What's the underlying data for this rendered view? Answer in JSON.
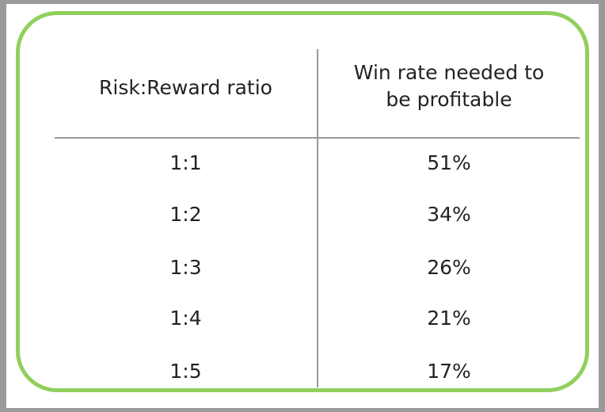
{
  "chart_data": {
    "type": "table",
    "columns": [
      "Risk:Reward ratio",
      "Win rate needed to\nbe profitable"
    ],
    "rows": [
      [
        "1:1",
        "51%"
      ],
      [
        "1:2",
        "34%"
      ],
      [
        "1:3",
        "26%"
      ],
      [
        "1:4",
        "21%"
      ],
      [
        "1:5",
        "17%"
      ]
    ],
    "colors": {
      "background": "#9a9a9a",
      "frame_border": "#92cf5c",
      "table_lines": "#9a9a9a",
      "text": "#222222"
    }
  }
}
